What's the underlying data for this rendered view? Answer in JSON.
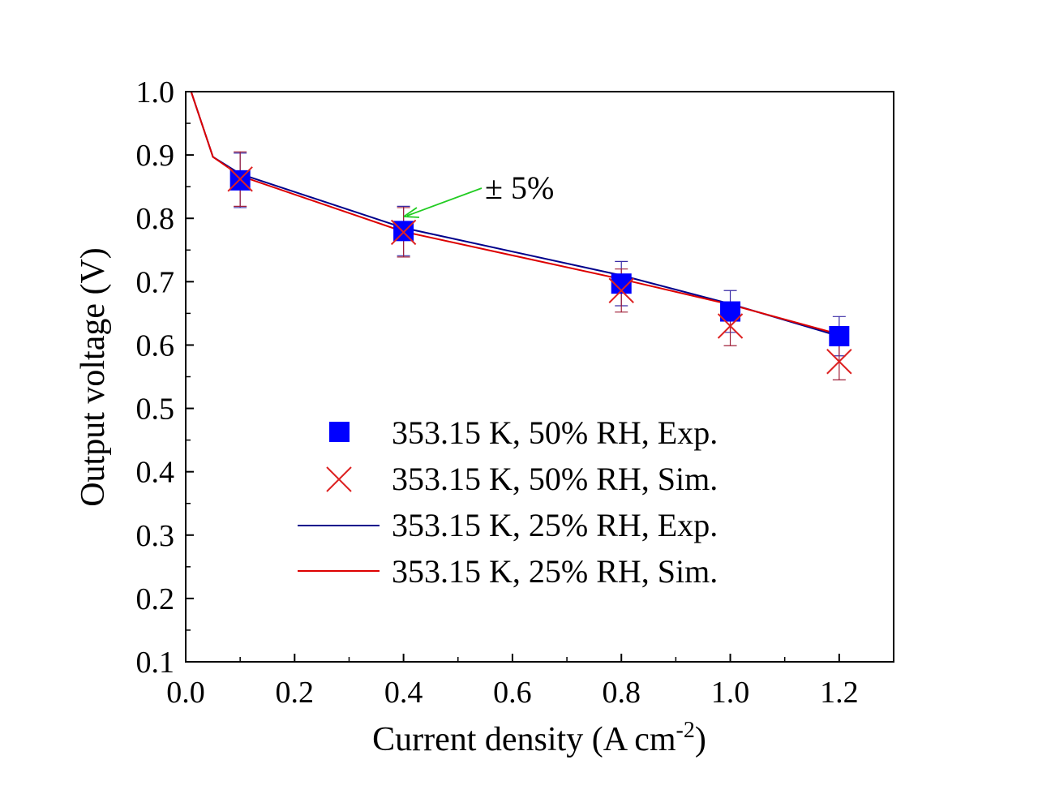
{
  "chart_data": {
    "type": "line",
    "title": "",
    "xlabel": "Current density (A cm",
    "xlabel_sup": "-2",
    "xlabel_end": ")",
    "ylabel": "Output voltage (V)",
    "xlim": [
      0.0,
      1.3
    ],
    "ylim": [
      0.1,
      1.0
    ],
    "xticks": [
      "0.0",
      "0.2",
      "0.4",
      "0.6",
      "0.8",
      "1.0",
      "1.2"
    ],
    "yticks": [
      "0.1",
      "0.2",
      "0.3",
      "0.4",
      "0.5",
      "0.6",
      "0.7",
      "0.8",
      "0.9",
      "1.0"
    ],
    "grid": false,
    "legend_position": "lower-center",
    "series": [
      {
        "name": "353.15 K, 50% RH, Exp.",
        "style": "square-markers",
        "color": "#0000ff",
        "points": [
          {
            "x": 0.1,
            "y": 0.86,
            "err": 0.043
          },
          {
            "x": 0.4,
            "y": 0.78,
            "err": 0.039
          },
          {
            "x": 0.8,
            "y": 0.697,
            "err": 0.035
          },
          {
            "x": 1.0,
            "y": 0.653,
            "err": 0.033
          },
          {
            "x": 1.2,
            "y": 0.614,
            "err": 0.031
          }
        ]
      },
      {
        "name": "353.15 K, 50% RH, Sim.",
        "style": "x-markers",
        "color": "#dd2222",
        "points": [
          {
            "x": 0.1,
            "y": 0.862,
            "err": 0.043
          },
          {
            "x": 0.4,
            "y": 0.778,
            "err": 0.039
          },
          {
            "x": 0.8,
            "y": 0.686,
            "err": 0.034
          },
          {
            "x": 1.0,
            "y": 0.63,
            "err": 0.031
          },
          {
            "x": 1.2,
            "y": 0.574,
            "err": 0.029
          }
        ]
      },
      {
        "name": "353.15 K, 25% RH, Exp.",
        "style": "line",
        "color": "#00008b",
        "points": [
          {
            "x": 0.01,
            "y": 1.0
          },
          {
            "x": 0.05,
            "y": 0.897
          },
          {
            "x": 0.1,
            "y": 0.87
          },
          {
            "x": 0.4,
            "y": 0.785
          },
          {
            "x": 0.8,
            "y": 0.71
          },
          {
            "x": 1.0,
            "y": 0.665
          },
          {
            "x": 1.2,
            "y": 0.614
          }
        ]
      },
      {
        "name": "353.15 K, 25% RH, Sim.",
        "style": "line",
        "color": "#dd0000",
        "points": [
          {
            "x": 0.01,
            "y": 1.0
          },
          {
            "x": 0.05,
            "y": 0.897
          },
          {
            "x": 0.1,
            "y": 0.867
          },
          {
            "x": 0.4,
            "y": 0.779
          },
          {
            "x": 0.8,
            "y": 0.704
          },
          {
            "x": 1.0,
            "y": 0.664
          },
          {
            "x": 1.2,
            "y": 0.617
          }
        ]
      }
    ],
    "annotations": [
      {
        "text": "± 5%",
        "arrow_color": "#22cc22",
        "target_x": 0.4,
        "target_y": 0.8
      }
    ]
  }
}
